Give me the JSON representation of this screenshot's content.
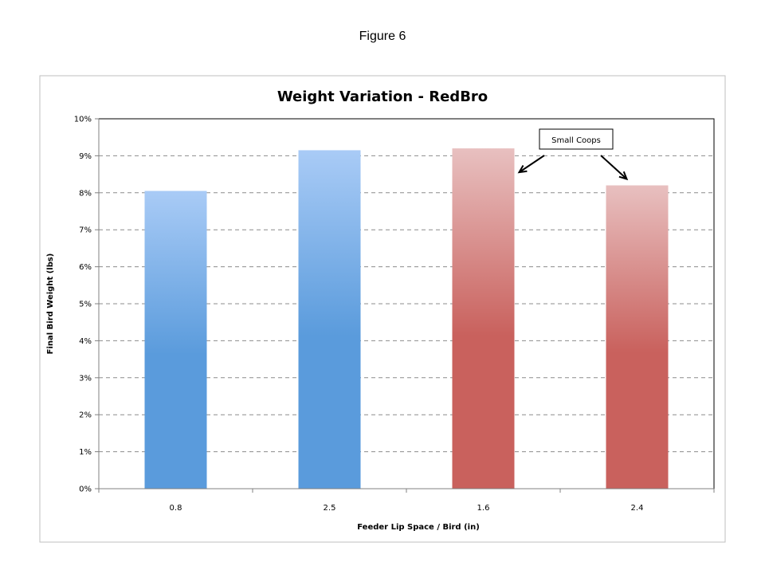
{
  "figure_caption": "Figure 6",
  "chart_data": {
    "type": "bar",
    "title": "Weight Variation - RedBro",
    "xlabel": "Feeder Lip Space / Bird (in)",
    "ylabel": "Final Bird Weight (lbs)",
    "categories": [
      "0.8",
      "2.5",
      "1.6",
      "2.4"
    ],
    "values": [
      8.05,
      9.15,
      9.2,
      8.2
    ],
    "ylim": [
      0,
      10
    ],
    "yticks": [
      "0%",
      "1%",
      "2%",
      "3%",
      "4%",
      "5%",
      "6%",
      "7%",
      "8%",
      "9%",
      "10%"
    ],
    "grid": true,
    "bar_colors": [
      {
        "top": "#a9cbf6",
        "bottom": "#5a9bdc"
      },
      {
        "top": "#a9cbf6",
        "bottom": "#5a9bdc"
      },
      {
        "top": "#e8c0c0",
        "bottom": "#c9615d"
      },
      {
        "top": "#e8c0c0",
        "bottom": "#c9615d"
      }
    ],
    "annotation": {
      "text": "Small Coops",
      "targets": [
        2,
        3
      ]
    }
  }
}
